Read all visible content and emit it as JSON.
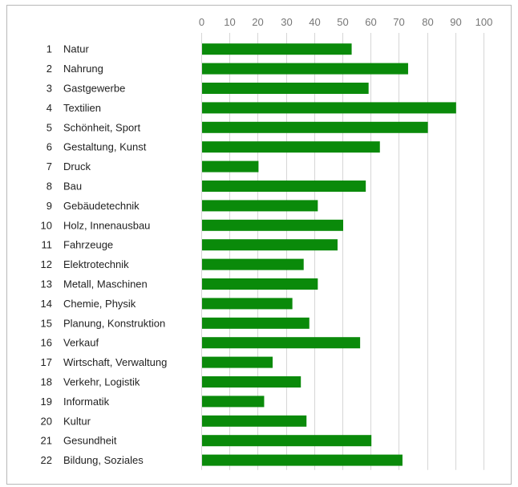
{
  "chart_data": {
    "type": "bar",
    "orientation": "horizontal",
    "title": "",
    "xlabel": "",
    "ylabel": "",
    "xlim": [
      0,
      100
    ],
    "grid": true,
    "legend": "none",
    "bar_color": "#0a8a0a",
    "ticks": [
      "0",
      "10",
      "20",
      "30",
      "40",
      "50",
      "60",
      "70",
      "80",
      "90",
      "100"
    ],
    "numbers": [
      "1",
      "2",
      "3",
      "4",
      "5",
      "6",
      "7",
      "8",
      "9",
      "10",
      "11",
      "12",
      "13",
      "14",
      "15",
      "16",
      "17",
      "18",
      "19",
      "20",
      "21",
      "22"
    ],
    "categories": [
      "Natur",
      "Nahrung",
      "Gastgewerbe",
      "Textilien",
      "Schönheit, Sport",
      "Gestaltung, Kunst",
      "Druck",
      "Bau",
      "Gebäudetechnik",
      "Holz, Innenausbau",
      "Fahrzeuge",
      "Elektrotechnik",
      "Metall, Maschinen",
      "Chemie, Physik",
      "Planung, Konstruktion",
      "Verkauf",
      "Wirtschaft, Verwaltung",
      "Verkehr, Logistik",
      "Informatik",
      "Kultur",
      "Gesundheit",
      "Bildung, Soziales"
    ],
    "values": [
      53,
      73,
      59,
      90,
      80,
      63,
      20,
      58,
      41,
      50,
      48,
      36,
      41,
      32,
      38,
      56,
      25,
      35,
      22,
      37,
      60,
      71
    ]
  }
}
